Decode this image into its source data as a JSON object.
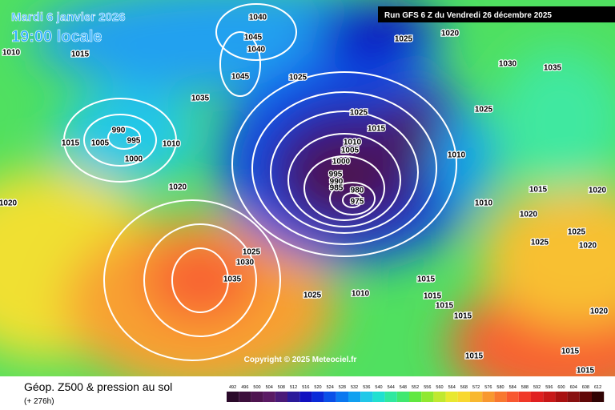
{
  "header": {
    "date": "Mardi 6 janvier 2026",
    "time": "19:00 locale",
    "run": "Run GFS 6 Z du Vendredi 26 décembre 2025"
  },
  "map": {
    "copyright": "Copyright © 2025 Meteociel.fr",
    "isobar_labels": [
      1010,
      1015,
      1040,
      1045,
      1040,
      1045,
      1035,
      1025,
      1025,
      1020,
      1030,
      1035,
      1025,
      1025,
      1015,
      990,
      995,
      1005,
      1015,
      1010,
      1000,
      1010,
      1005,
      1000,
      995,
      990,
      985,
      980,
      975,
      1010,
      1020,
      1020,
      1010,
      1015,
      1020,
      1020,
      1025,
      1025,
      1020,
      1025,
      1030,
      1035,
      1010,
      1025,
      1015,
      1015,
      1015,
      1015,
      1020,
      1015,
      1015,
      1015
    ]
  },
  "footer": {
    "title": "Géop. Z500 & pression au sol",
    "lead": "(+ 276h)"
  },
  "legend": {
    "ticks": [
      492,
      496,
      500,
      504,
      508,
      512,
      516,
      520,
      524,
      528,
      532,
      536,
      540,
      544,
      548,
      552,
      556,
      560,
      564,
      568,
      572,
      576,
      580,
      584,
      588,
      592,
      596,
      600,
      604,
      608,
      612
    ],
    "colors": [
      "#2a0a2a",
      "#3c0f3c",
      "#4e1450",
      "#5a1a64",
      "#4a1a78",
      "#2a1a9a",
      "#1010c0",
      "#0a2ad8",
      "#0a50e8",
      "#0a78f0",
      "#10a0f0",
      "#20c8e8",
      "#20e0d0",
      "#30e8a0",
      "#40e870",
      "#60e840",
      "#90e830",
      "#c0e830",
      "#e8e830",
      "#f8d830",
      "#f8b830",
      "#f89830",
      "#f87830",
      "#f85830",
      "#f03828",
      "#e02020",
      "#c81818",
      "#a81010",
      "#881010",
      "#600808",
      "#300404"
    ]
  }
}
